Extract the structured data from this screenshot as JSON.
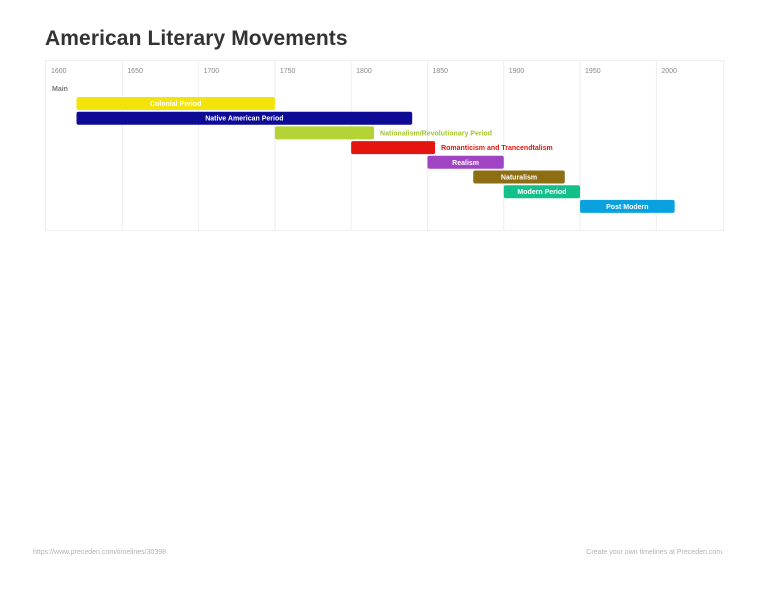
{
  "title": "American Literary Movements",
  "footer": {
    "left": "https://www.preceden.com/timelines/30398",
    "right": "Create your own timelines at Preceden.com."
  },
  "chart_data": {
    "type": "timeline",
    "xlim": [
      1600,
      2045
    ],
    "ticks": [
      {
        "value": 1600,
        "label": "1600"
      },
      {
        "value": 1650,
        "label": "1650"
      },
      {
        "value": 1700,
        "label": "1700"
      },
      {
        "value": 1750,
        "label": "1750"
      },
      {
        "value": 1800,
        "label": "1800"
      },
      {
        "value": 1850,
        "label": "1850"
      },
      {
        "value": 1900,
        "label": "1900"
      },
      {
        "value": 1950,
        "label": "1950"
      },
      {
        "value": 2000,
        "label": "2000"
      }
    ],
    "layer": "Main",
    "grid": true,
    "events": [
      {
        "label": "Colonial Period",
        "start": 1620,
        "end": 1750,
        "color": "#f2e40a",
        "text_color": "#ffffff",
        "label_inside": true
      },
      {
        "label": "Native American Period",
        "start": 1620,
        "end": 1840,
        "color": "#0d0a96",
        "text_color": "#ffffff",
        "label_inside": true
      },
      {
        "label": "Nationalism/Revolutionary Period",
        "start": 1750,
        "end": 1815,
        "color": "#b4d334",
        "text_color": "#a6c52e",
        "label_inside": false
      },
      {
        "label": "Romanticism and Trancendtalism",
        "start": 1800,
        "end": 1855,
        "color": "#e4150e",
        "text_color": "#e4150e",
        "label_inside": false
      },
      {
        "label": "Realism",
        "start": 1850,
        "end": 1900,
        "color": "#a044c4",
        "text_color": "#ffffff",
        "label_inside": true
      },
      {
        "label": "Naturalism",
        "start": 1880,
        "end": 1940,
        "color": "#8e6e12",
        "text_color": "#ffffff",
        "label_inside": true
      },
      {
        "label": "Modern Period",
        "start": 1900,
        "end": 1950,
        "color": "#14c08a",
        "text_color": "#ffffff",
        "label_inside": true
      },
      {
        "label": "Post Modern",
        "start": 1950,
        "end": 2012,
        "color": "#0aa2de",
        "text_color": "#ffffff",
        "label_inside": true
      }
    ]
  }
}
